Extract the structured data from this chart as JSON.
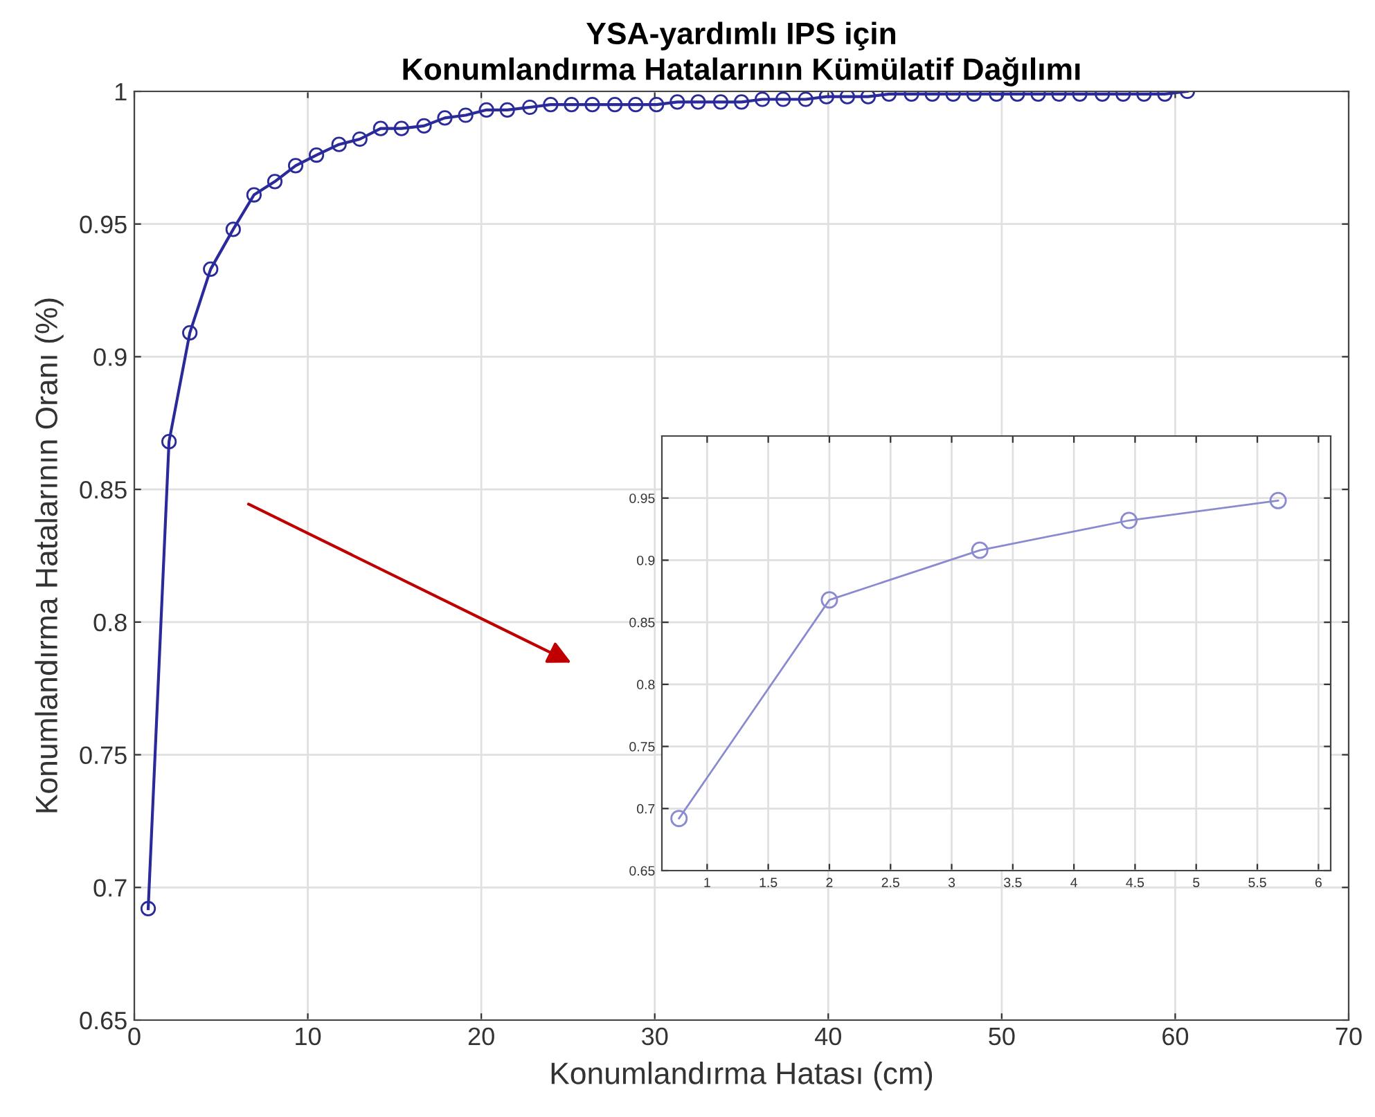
{
  "chart_data": [
    {
      "type": "line",
      "title": "YSA-yardımlı IPS için\nKonumlandırma Hatalarının Kümülatif Dağılımı",
      "xlabel": "Konumlandırma Hatası (cm)",
      "ylabel": "Konumlandırma Hatalarının Oranı (%)",
      "x": [
        0.8,
        2.0,
        3.2,
        4.4,
        5.7,
        6.9,
        8.1,
        9.3,
        10.5,
        11.8,
        13.0,
        14.2,
        15.4,
        16.7,
        17.9,
        19.1,
        20.3,
        21.5,
        22.8,
        24.0,
        25.2,
        26.4,
        27.7,
        28.9,
        30.1,
        31.3,
        32.5,
        33.8,
        35.0,
        36.2,
        37.4,
        38.7,
        39.9,
        41.1,
        42.3,
        43.5,
        44.8,
        46.0,
        47.2,
        48.4,
        49.7,
        50.9,
        52.1,
        53.3,
        54.5,
        55.8,
        57.0,
        58.2,
        59.4,
        60.7
      ],
      "series": [
        {
          "color": "#2a2a9a",
          "values": [
            0.692,
            0.868,
            0.909,
            0.933,
            0.948,
            0.961,
            0.966,
            0.972,
            0.976,
            0.98,
            0.982,
            0.986,
            0.986,
            0.987,
            0.99,
            0.991,
            0.993,
            0.993,
            0.994,
            0.995,
            0.995,
            0.995,
            0.995,
            0.995,
            0.995,
            0.996,
            0.996,
            0.996,
            0.996,
            0.997,
            0.997,
            0.997,
            0.998,
            0.998,
            0.998,
            0.999,
            0.999,
            0.999,
            0.999,
            0.999,
            0.999,
            0.999,
            0.999,
            0.999,
            0.999,
            0.999,
            0.999,
            0.999,
            0.999,
            1.0
          ]
        }
      ],
      "xlim": [
        0,
        70
      ],
      "ylim": [
        0.65,
        1
      ],
      "xticks": [
        0,
        10,
        20,
        30,
        40,
        50,
        60,
        70
      ],
      "yticks": [
        0.65,
        0.7,
        0.75,
        0.8,
        0.85,
        0.9,
        0.95,
        1
      ],
      "grid": true,
      "marker": "circle",
      "line_style": "solid"
    },
    {
      "type": "line",
      "x": [
        0.77,
        2.0,
        3.23,
        4.45,
        5.67
      ],
      "series": [
        {
          "color": "#8a8ad0",
          "values": [
            0.692,
            0.868,
            0.908,
            0.932,
            0.948
          ]
        }
      ],
      "xlim": [
        0.63,
        6.1
      ],
      "ylim": [
        0.65,
        1.0
      ],
      "xticks": [
        1,
        1.5,
        2,
        2.5,
        3,
        3.5,
        4,
        4.5,
        5,
        5.5,
        6
      ],
      "yticks": [
        0.65,
        0.7,
        0.75,
        0.8,
        0.85,
        0.9,
        0.95
      ],
      "grid": true,
      "marker": "circle",
      "line_style": "solid"
    }
  ]
}
